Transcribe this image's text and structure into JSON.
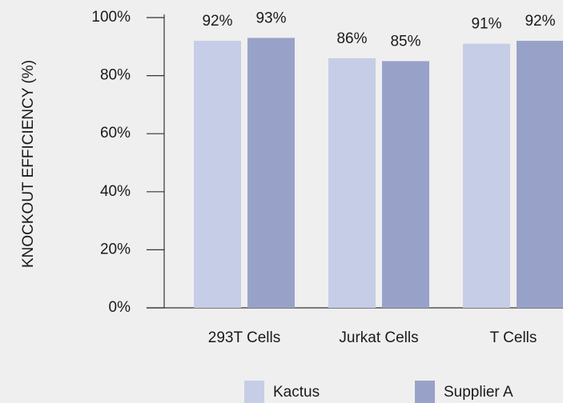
{
  "chart_data": {
    "type": "bar",
    "categories": [
      "293T Cells",
      "Jurkat Cells",
      "T Cells"
    ],
    "y_label": "KNOCKOUT EFFICIENCY (%)",
    "series": [
      {
        "name": "Kactus",
        "color": "#c6cde7",
        "values": [
          92,
          86,
          91
        ],
        "value_labels": [
          "92%",
          "86%",
          "91%"
        ]
      },
      {
        "name": "Supplier A",
        "color": "#98a2c9",
        "values": [
          93,
          85,
          92
        ],
        "value_labels": [
          "93%",
          "85%",
          "92%"
        ]
      }
    ],
    "ylim": [
      0,
      100
    ],
    "yticks": [
      {
        "value": 0,
        "label": "0%"
      },
      {
        "value": 20,
        "label": "20%"
      },
      {
        "value": 40,
        "label": "40%"
      },
      {
        "value": 60,
        "label": "60%"
      },
      {
        "value": 80,
        "label": "80%"
      },
      {
        "value": 100,
        "label": "100%"
      }
    ],
    "legend": "bottom"
  }
}
